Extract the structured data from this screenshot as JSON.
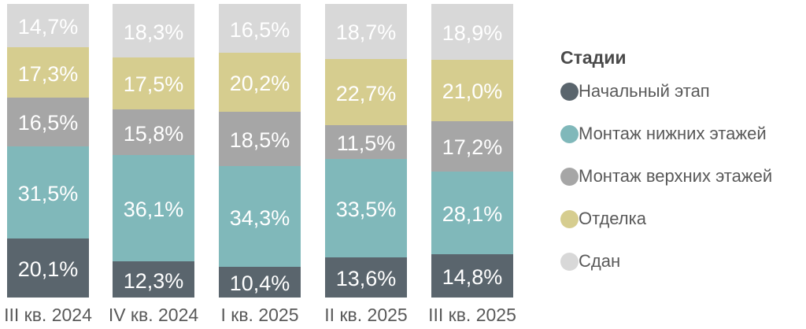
{
  "chart_data": {
    "type": "bar",
    "subtype": "stacked-percent",
    "orientation": "vertical",
    "legend_title": "Стадии",
    "legend_position": "right",
    "grid": false,
    "axes_visible": false,
    "value_suffix": "%",
    "decimal_separator": ",",
    "ylim": [
      0,
      100
    ],
    "categories": [
      "III кв. 2024",
      "IV кв. 2024",
      "I кв. 2025",
      "II кв. 2025",
      "III кв. 2025"
    ],
    "series": [
      {
        "name": "Начальный этап",
        "color": "#5a656d",
        "values": [
          20.1,
          12.3,
          10.4,
          13.6,
          14.8
        ],
        "display": [
          "20,1%",
          "12,3%",
          "10,4%",
          "13,6%",
          "14,8%"
        ]
      },
      {
        "name": "Монтаж нижних этажей",
        "color": "#80b8ba",
        "values": [
          31.5,
          36.1,
          34.3,
          33.5,
          28.1
        ],
        "display": [
          "31,5%",
          "36,1%",
          "34,3%",
          "33,5%",
          "28,1%"
        ]
      },
      {
        "name": "Монтаж верхних этажей",
        "color": "#a6a6a6",
        "values": [
          16.5,
          15.8,
          18.5,
          11.5,
          17.2
        ],
        "display": [
          "16,5%",
          "15,8%",
          "18,5%",
          "11,5%",
          "17,2%"
        ]
      },
      {
        "name": "Отделка",
        "color": "#d6cd8f",
        "values": [
          17.3,
          17.5,
          20.2,
          22.7,
          21.0
        ],
        "display": [
          "17,3%",
          "17,5%",
          "20,2%",
          "22,7%",
          "21,0%"
        ]
      },
      {
        "name": "Сдан",
        "color": "#d8d8d8",
        "values": [
          14.7,
          18.3,
          16.5,
          18.7,
          18.9
        ],
        "display": [
          "14,7%",
          "18,3%",
          "16,5%",
          "18,7%",
          "18,9%"
        ]
      }
    ],
    "label_color": "#ffffff",
    "category_label_color": "#595959"
  }
}
